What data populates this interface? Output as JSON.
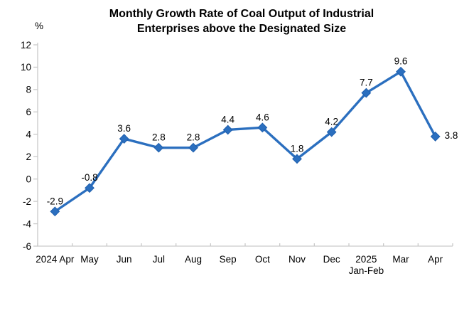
{
  "chart_data": {
    "type": "line",
    "title": "Monthly Growth Rate of Coal Output of Industrial Enterprises above the Designated Size",
    "title_lines": [
      "Monthly Growth Rate of Coal Output of Industrial",
      "Enterprises above the Designated Size"
    ],
    "unit_label": "%",
    "categories": [
      "2024 Apr",
      "May",
      "Jun",
      "Jul",
      "Aug",
      "Sep",
      "Oct",
      "Nov",
      "Dec",
      "2025\nJan-Feb",
      "Mar",
      "Apr"
    ],
    "values": [
      -2.9,
      -0.8,
      3.6,
      2.8,
      2.8,
      4.4,
      4.6,
      1.8,
      4.2,
      7.7,
      9.6,
      3.8
    ],
    "data_labels": [
      "-2.9",
      "-0.8",
      "3.6",
      "2.8",
      "2.8",
      "4.4",
      "4.6",
      "1.8",
      "4.2",
      "7.7",
      "9.6",
      "3.8"
    ],
    "data_label_positions": [
      "above",
      "above",
      "above",
      "above",
      "above",
      "above",
      "above",
      "above",
      "above",
      "above",
      "above",
      "right"
    ],
    "y_ticks": [
      12,
      10,
      8,
      6,
      4,
      2,
      0,
      -2,
      -4,
      -6
    ],
    "ylim": [
      -6,
      12
    ],
    "xlabel": "",
    "ylabel": "%",
    "grid": false,
    "legend": "none",
    "marker": "diamond",
    "colors": {
      "line": "#2B6FBF",
      "marker_fill": "#2B6FBF",
      "marker_stroke": "#1F5FAD",
      "axis": "#C9C9C9",
      "text": "#000000",
      "background": "#FFFFFF"
    }
  }
}
